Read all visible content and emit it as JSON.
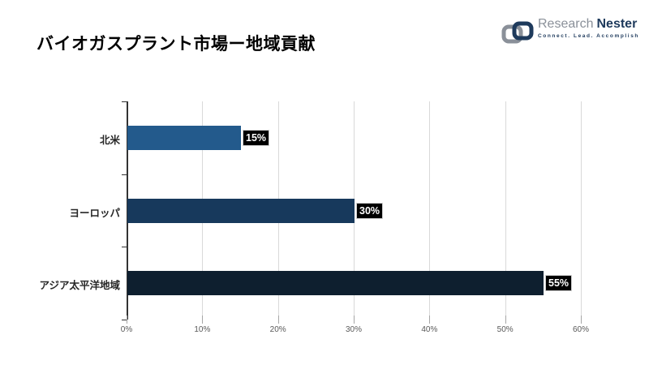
{
  "header": {
    "title": "バイオガスプラント市場ー地域貢献",
    "logo": {
      "brand_primary": "Research",
      "brand_secondary": "Nester",
      "tagline": "Connect. Lead. Accomplish",
      "icon": "chain-links-icon",
      "colors": {
        "gray": "#8A9099",
        "navy": "#1E3A5C"
      }
    }
  },
  "chart_data": {
    "type": "bar",
    "orientation": "horizontal",
    "title": "バイオガスプラント市場ー地域貢献",
    "categories": [
      "北米",
      "ヨーロッパ",
      "アジア太平洋地域"
    ],
    "values": [
      15,
      30,
      55
    ],
    "value_labels": [
      "15%",
      "30%",
      "55%"
    ],
    "bar_colors": [
      "#235A8C",
      "#17395C",
      "#0E1F2F"
    ],
    "x_ticks": [
      "0%",
      "10%",
      "20%",
      "30%",
      "40%",
      "50%",
      "60%"
    ],
    "x_tick_values": [
      0,
      10,
      20,
      30,
      40,
      50,
      60
    ],
    "xlim": [
      0,
      60
    ],
    "xlabel": "",
    "ylabel": "",
    "grid": "vertical",
    "legend": "none",
    "value_label_style": {
      "background": "#000000",
      "text": "#ffffff"
    },
    "gridline_color": "#d9d9d9",
    "axis_color": "#333333",
    "tick_label_color": "#595959"
  }
}
